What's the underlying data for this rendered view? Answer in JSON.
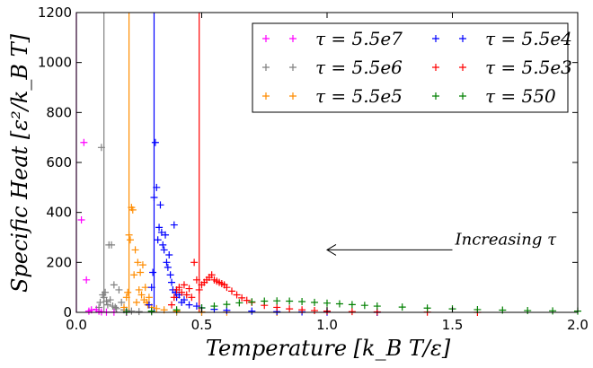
{
  "chart_data": {
    "type": "scatter",
    "title": "",
    "xlabel": "Temperature [k_B T/ε]",
    "ylabel": "Specific Heat [ε²/k_B T]",
    "xlim": [
      0.0,
      2.0
    ],
    "ylim": [
      0,
      1200
    ],
    "xticks": [
      "0.0",
      "0.5",
      "1.0",
      "1.5",
      "2.0"
    ],
    "yticks": [
      "0",
      "200",
      "400",
      "600",
      "800",
      "1000",
      "1200"
    ],
    "grid": false,
    "legend_position": "top-right",
    "marker": "+",
    "series": [
      {
        "name": "τ = 5.5e7",
        "color": "#ff00ff",
        "vline_x": 0.0,
        "points": [
          [
            0.02,
            370
          ],
          [
            0.03,
            680
          ],
          [
            0.04,
            130
          ],
          [
            0.05,
            5
          ],
          [
            0.06,
            10
          ],
          [
            0.08,
            12
          ],
          [
            0.09,
            5
          ],
          [
            0.1,
            2
          ],
          [
            0.12,
            1
          ],
          [
            0.15,
            1
          ],
          [
            0.2,
            0
          ]
        ]
      },
      {
        "name": "τ = 5.5e6",
        "color": "#808080",
        "vline_x": 0.11,
        "points": [
          [
            0.09,
            20
          ],
          [
            0.095,
            40
          ],
          [
            0.1,
            660
          ],
          [
            0.105,
            70
          ],
          [
            0.11,
            60
          ],
          [
            0.115,
            80
          ],
          [
            0.12,
            45
          ],
          [
            0.125,
            30
          ],
          [
            0.13,
            270
          ],
          [
            0.135,
            50
          ],
          [
            0.14,
            270
          ],
          [
            0.145,
            25
          ],
          [
            0.15,
            110
          ],
          [
            0.155,
            20
          ],
          [
            0.16,
            15
          ],
          [
            0.17,
            90
          ],
          [
            0.18,
            40
          ],
          [
            0.19,
            10
          ],
          [
            0.2,
            8
          ],
          [
            0.22,
            5
          ],
          [
            0.25,
            3
          ],
          [
            0.3,
            2
          ],
          [
            0.4,
            1
          ],
          [
            0.5,
            0
          ]
        ]
      },
      {
        "name": "τ = 5.5e5",
        "color": "#ff8c00",
        "vline_x": 0.21,
        "points": [
          [
            0.19,
            20
          ],
          [
            0.2,
            60
          ],
          [
            0.205,
            80
          ],
          [
            0.21,
            310
          ],
          [
            0.215,
            290
          ],
          [
            0.22,
            420
          ],
          [
            0.225,
            410
          ],
          [
            0.23,
            150
          ],
          [
            0.235,
            250
          ],
          [
            0.24,
            40
          ],
          [
            0.245,
            200
          ],
          [
            0.25,
            90
          ],
          [
            0.255,
            160
          ],
          [
            0.26,
            70
          ],
          [
            0.265,
            190
          ],
          [
            0.27,
            50
          ],
          [
            0.275,
            100
          ],
          [
            0.28,
            40
          ],
          [
            0.285,
            30
          ],
          [
            0.29,
            60
          ],
          [
            0.3,
            20
          ],
          [
            0.32,
            15
          ],
          [
            0.35,
            10
          ],
          [
            0.4,
            5
          ],
          [
            0.5,
            2
          ],
          [
            0.6,
            1
          ],
          [
            0.8,
            0
          ]
        ]
      },
      {
        "name": "τ = 5.5e4",
        "color": "#0000ff",
        "vline_x": 0.31,
        "points": [
          [
            0.29,
            30
          ],
          [
            0.3,
            100
          ],
          [
            0.305,
            160
          ],
          [
            0.31,
            460
          ],
          [
            0.315,
            680
          ],
          [
            0.32,
            500
          ],
          [
            0.325,
            290
          ],
          [
            0.33,
            340
          ],
          [
            0.335,
            430
          ],
          [
            0.34,
            320
          ],
          [
            0.345,
            270
          ],
          [
            0.35,
            250
          ],
          [
            0.355,
            310
          ],
          [
            0.36,
            200
          ],
          [
            0.365,
            180
          ],
          [
            0.37,
            230
          ],
          [
            0.375,
            150
          ],
          [
            0.38,
            120
          ],
          [
            0.385,
            90
          ],
          [
            0.39,
            350
          ],
          [
            0.395,
            80
          ],
          [
            0.4,
            60
          ],
          [
            0.41,
            70
          ],
          [
            0.42,
            40
          ],
          [
            0.43,
            50
          ],
          [
            0.45,
            30
          ],
          [
            0.48,
            25
          ],
          [
            0.5,
            18
          ],
          [
            0.55,
            12
          ],
          [
            0.6,
            8
          ],
          [
            0.7,
            5
          ],
          [
            0.8,
            3
          ],
          [
            0.9,
            2
          ],
          [
            1.0,
            1
          ],
          [
            1.2,
            0
          ]
        ]
      },
      {
        "name": "τ = 5.5e3",
        "color": "#ff0000",
        "vline_x": 0.49,
        "points": [
          [
            0.38,
            30
          ],
          [
            0.39,
            60
          ],
          [
            0.4,
            90
          ],
          [
            0.41,
            100
          ],
          [
            0.42,
            80
          ],
          [
            0.43,
            110
          ],
          [
            0.44,
            70
          ],
          [
            0.45,
            95
          ],
          [
            0.46,
            60
          ],
          [
            0.47,
            200
          ],
          [
            0.48,
            130
          ],
          [
            0.49,
            90
          ],
          [
            0.5,
            110
          ],
          [
            0.51,
            120
          ],
          [
            0.52,
            130
          ],
          [
            0.53,
            140
          ],
          [
            0.54,
            150
          ],
          [
            0.55,
            130
          ],
          [
            0.56,
            125
          ],
          [
            0.57,
            120
          ],
          [
            0.58,
            115
          ],
          [
            0.59,
            110
          ],
          [
            0.6,
            100
          ],
          [
            0.62,
            85
          ],
          [
            0.64,
            70
          ],
          [
            0.66,
            58
          ],
          [
            0.68,
            48
          ],
          [
            0.7,
            40
          ],
          [
            0.75,
            28
          ],
          [
            0.8,
            20
          ],
          [
            0.85,
            14
          ],
          [
            0.9,
            10
          ],
          [
            0.95,
            7
          ],
          [
            1.0,
            5
          ],
          [
            1.1,
            3
          ],
          [
            1.2,
            2
          ],
          [
            1.4,
            1
          ],
          [
            1.6,
            0
          ]
        ]
      },
      {
        "name": "τ = 550",
        "color": "#008000",
        "vline_x": null,
        "points": [
          [
            0.2,
            2
          ],
          [
            0.3,
            5
          ],
          [
            0.4,
            10
          ],
          [
            0.5,
            18
          ],
          [
            0.55,
            25
          ],
          [
            0.6,
            32
          ],
          [
            0.65,
            38
          ],
          [
            0.7,
            42
          ],
          [
            0.75,
            45
          ],
          [
            0.8,
            46
          ],
          [
            0.85,
            45
          ],
          [
            0.9,
            43
          ],
          [
            0.95,
            40
          ],
          [
            1.0,
            37
          ],
          [
            1.05,
            34
          ],
          [
            1.1,
            31
          ],
          [
            1.15,
            28
          ],
          [
            1.2,
            25
          ],
          [
            1.3,
            21
          ],
          [
            1.4,
            17
          ],
          [
            1.5,
            14
          ],
          [
            1.6,
            11
          ],
          [
            1.7,
            9
          ],
          [
            1.8,
            7
          ],
          [
            1.9,
            6
          ],
          [
            2.0,
            5
          ]
        ]
      }
    ],
    "annotations": [
      {
        "text": "Increasing τ",
        "arrow_from": [
          1.5,
          250
        ],
        "arrow_to": [
          1.0,
          250
        ]
      }
    ]
  }
}
